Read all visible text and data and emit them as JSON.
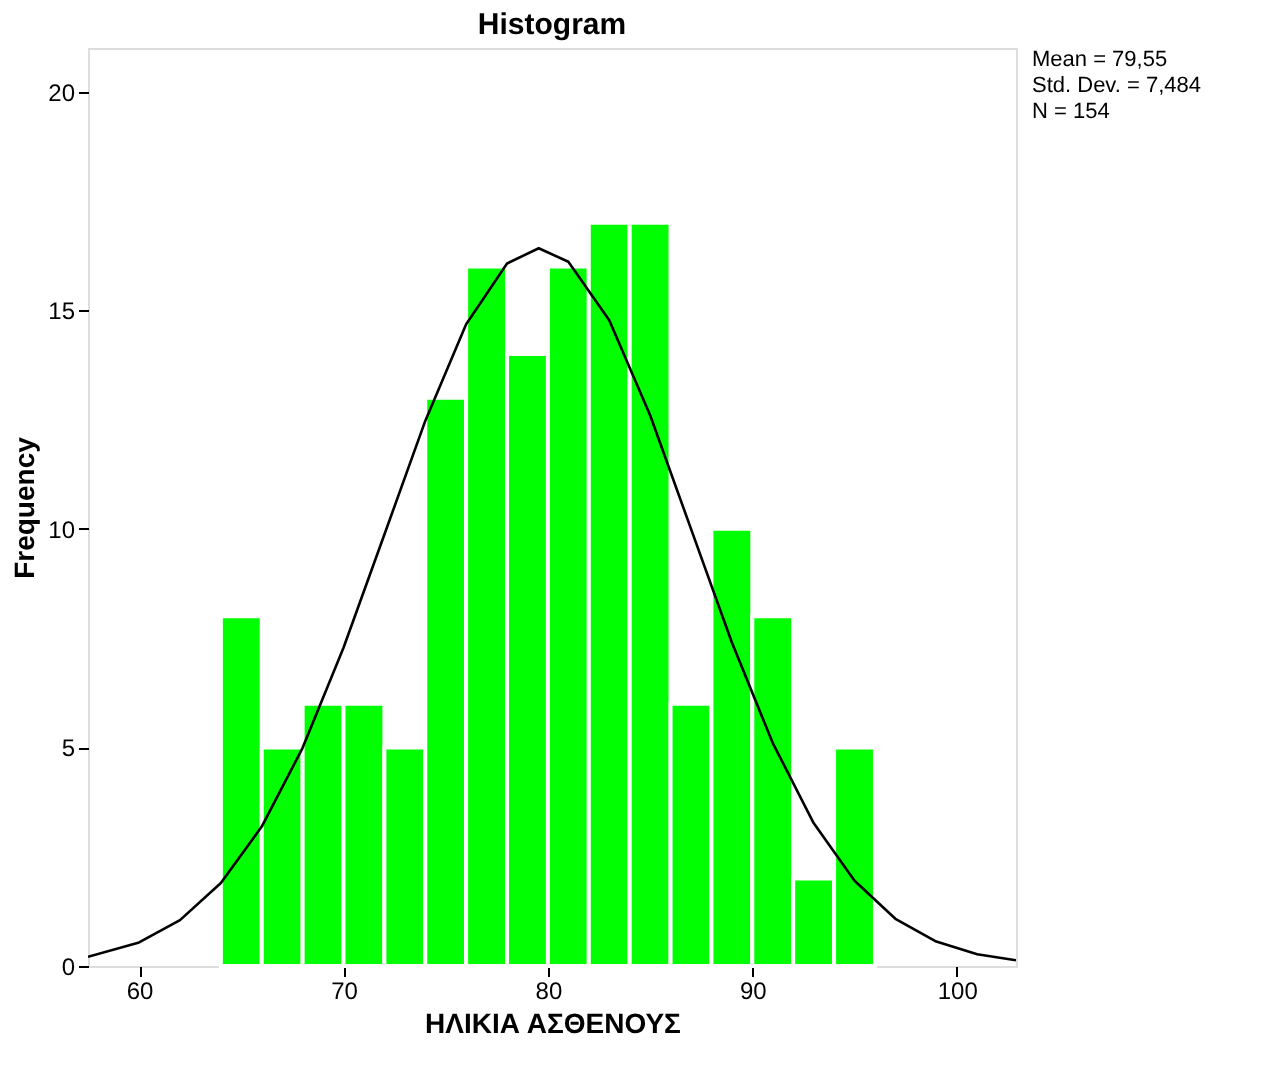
{
  "chart_data": {
    "type": "histogram",
    "title": "Histogram",
    "xlabel": "ΗΛΙΚΙΑ ΑΣΘΕΝΟΥΣ",
    "ylabel": "Frequency",
    "bins": [
      64,
      66,
      68,
      70,
      72,
      74,
      76,
      78,
      80,
      82,
      84,
      86,
      88,
      90,
      92,
      94,
      96
    ],
    "values": [
      8,
      5,
      6,
      6,
      5,
      13,
      16,
      14,
      16,
      17,
      17,
      6,
      10,
      8,
      2,
      5
    ],
    "color": "#00ff00",
    "series": [
      {
        "type": "line",
        "color": "#000000",
        "x": [
          57.5,
          60,
          62,
          64,
          66,
          68,
          70,
          72,
          74,
          76,
          78,
          79.55,
          81,
          83,
          85,
          87,
          89,
          91,
          93,
          95,
          97,
          99,
          101,
          102.9
        ],
        "values": [
          0.21,
          0.54,
          1.05,
          1.9,
          3.19,
          4.99,
          7.28,
          9.87,
          12.47,
          14.68,
          16.07,
          16.42,
          16.11,
          14.77,
          12.6,
          10.0,
          7.4,
          5.1,
          3.27,
          1.95,
          1.08,
          0.56,
          0.27,
          0.13
        ]
      }
    ],
    "xlim": [
      57.5,
      102.9
    ],
    "ylim": [
      0,
      21
    ],
    "xticks": [
      60,
      70,
      80,
      90,
      100
    ],
    "yticks": [
      0,
      5,
      10,
      15,
      20
    ],
    "grid": false,
    "annotations": [
      "Mean = 79,55",
      "Std. Dev. = 7,484",
      "N = 154"
    ]
  }
}
